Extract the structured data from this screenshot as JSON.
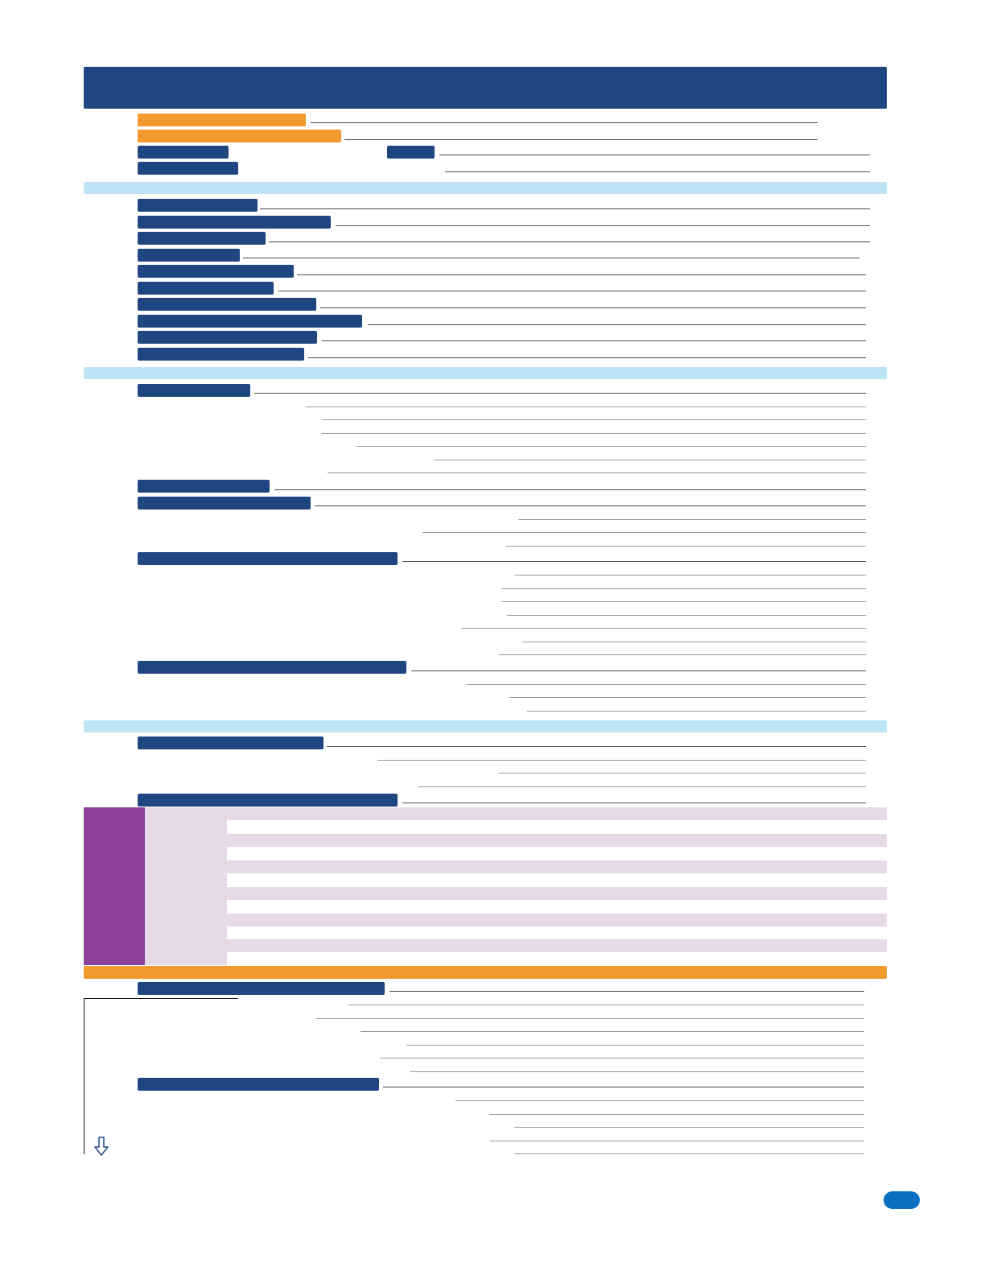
{
  "colors": {
    "header": "#1f4680",
    "accent_orange": "#f29a2e",
    "section_band": "#bde4f7",
    "purple": "#8e4199",
    "lavender": "#e8d9e8",
    "page_badge": "#0b6fc4"
  },
  "icons": {
    "scroll_arrow": "down-arrow-icon"
  }
}
